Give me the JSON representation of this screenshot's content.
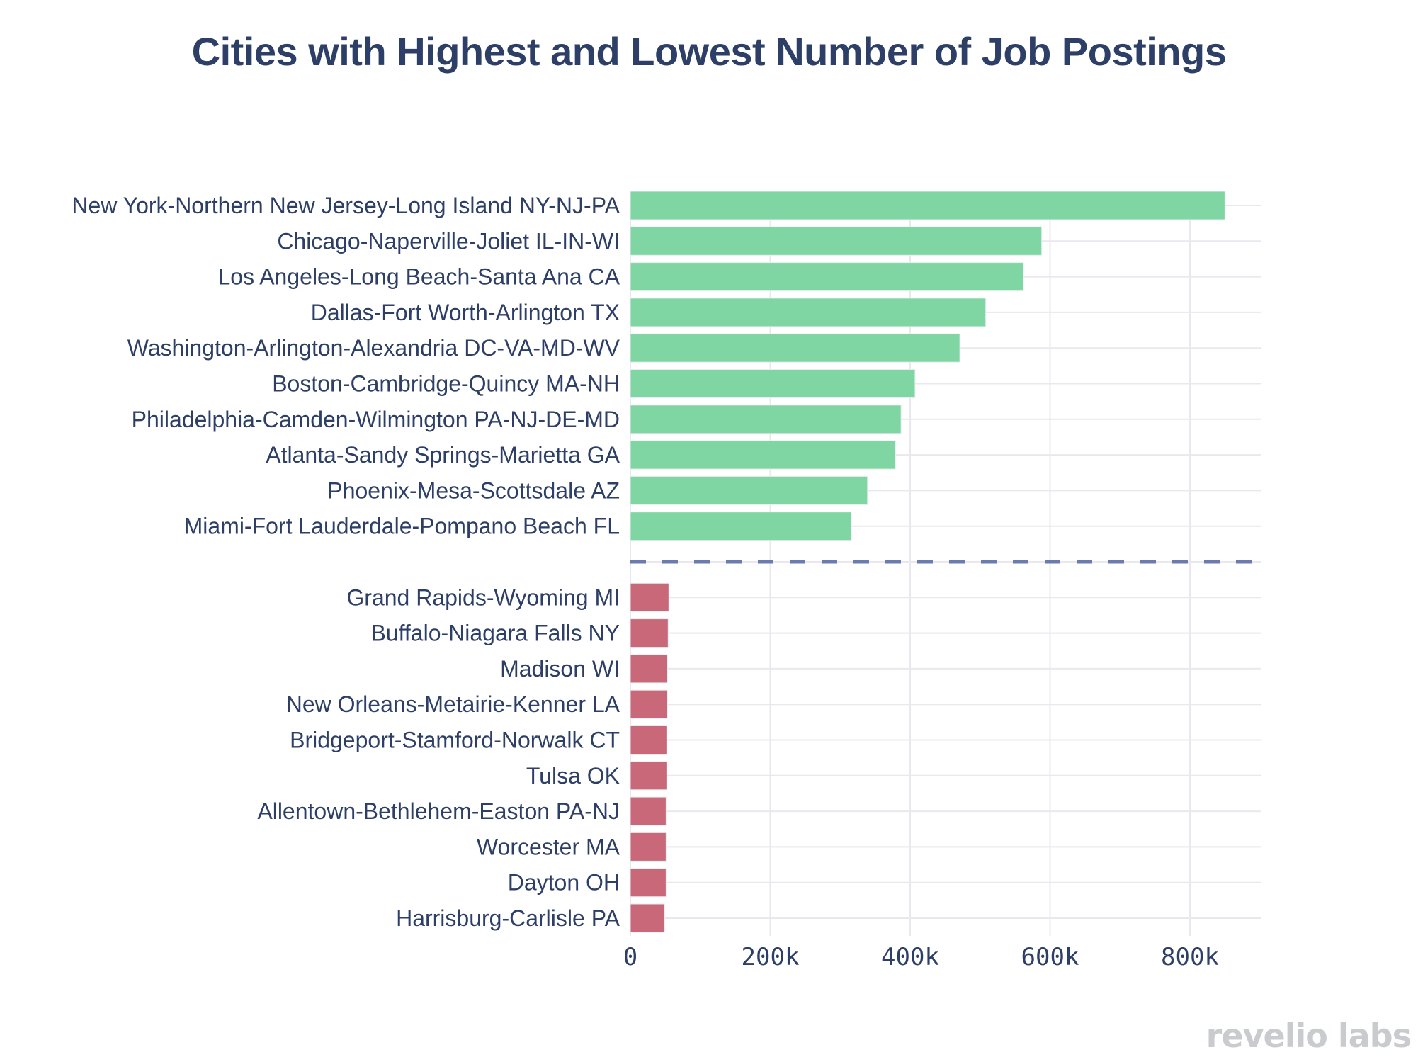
{
  "logo_text": "revelio labs",
  "chart_data": {
    "type": "bar",
    "orientation": "horizontal",
    "title": "Cities with Highest and Lowest Number of Job Postings",
    "xlabel": "",
    "ylabel": "",
    "xlim": [
      0,
      900000
    ],
    "x_ticks": [
      0,
      200000,
      400000,
      600000,
      800000
    ],
    "x_tick_labels": [
      "0",
      "200k",
      "400k",
      "600k",
      "800k"
    ],
    "grid": true,
    "colors": {
      "highest": "#7fd6a3",
      "lowest": "#c96878",
      "divider": "#6b7bb0",
      "grid": "#e8e8ee",
      "text": "#2d3f66"
    },
    "series": [
      {
        "name": "Highest",
        "categories": [
          "New York-Northern New Jersey-Long Island NY-NJ-PA",
          "Chicago-Naperville-Joliet IL-IN-WI",
          "Los Angeles-Long Beach-Santa Ana CA",
          "Dallas-Fort Worth-Arlington TX",
          "Washington-Arlington-Alexandria DC-VA-MD-WV",
          "Boston-Cambridge-Quincy MA-NH",
          "Philadelphia-Camden-Wilmington PA-NJ-DE-MD",
          "Atlanta-Sandy Springs-Marietta GA",
          "Phoenix-Mesa-Scottsdale AZ",
          "Miami-Fort Lauderdale-Pompano Beach FL"
        ],
        "values": [
          850000,
          588000,
          562000,
          508000,
          471000,
          407000,
          387000,
          379000,
          339000,
          316000
        ]
      },
      {
        "name": "Lowest",
        "categories": [
          "Grand Rapids-Wyoming MI",
          "Buffalo-Niagara Falls NY",
          "Madison WI",
          "New Orleans-Metairie-Kenner LA",
          "Bridgeport-Stamford-Norwalk CT",
          "Tulsa OK",
          "Allentown-Bethlehem-Easton PA-NJ",
          "Worcester MA",
          "Dayton OH",
          "Harrisburg-Carlisle PA"
        ],
        "values": [
          55000,
          54000,
          53000,
          53000,
          52000,
          52000,
          51000,
          51000,
          51000,
          49000
        ]
      }
    ]
  }
}
